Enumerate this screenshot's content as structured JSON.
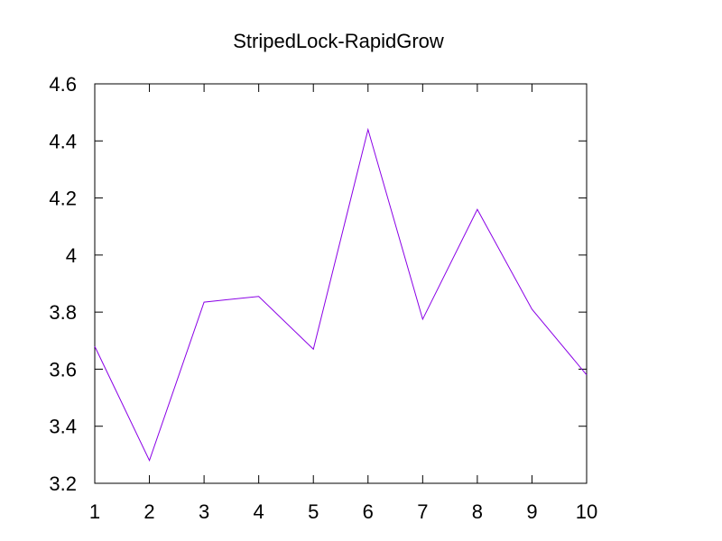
{
  "chart_data": {
    "type": "line",
    "title": "StripedLock-RapidGrow",
    "xlabel": "",
    "ylabel": "",
    "x": [
      1,
      2,
      3,
      4,
      5,
      6,
      7,
      8,
      9,
      10
    ],
    "series": [
      {
        "color": "#8a00e6",
        "values": [
          3.68,
          3.28,
          3.835,
          3.855,
          3.67,
          4.44,
          3.775,
          4.16,
          3.81,
          3.58
        ]
      }
    ],
    "xlim": [
      1,
      10
    ],
    "ylim": [
      3.2,
      4.6
    ],
    "xticks": [
      "1",
      "2",
      "3",
      "4",
      "5",
      "6",
      "7",
      "8",
      "9",
      "10"
    ],
    "yticks": [
      "3.2",
      "3.4",
      "3.6",
      "3.8",
      "4",
      "4.2",
      "4.4",
      "4.6"
    ],
    "grid": false,
    "legend": "none"
  }
}
